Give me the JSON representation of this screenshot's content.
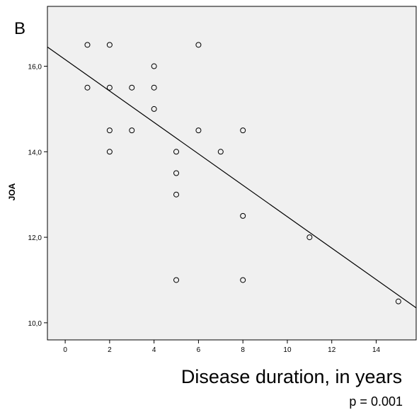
{
  "chart_data": {
    "type": "scatter",
    "panel_label": "B",
    "title": "",
    "xlabel": "Disease duration, in years",
    "ylabel": "JOA",
    "annotation": "p = 0.001",
    "xlim": [
      -0.8,
      15.8
    ],
    "ylim": [
      9.6,
      17.4
    ],
    "x_ticks": [
      {
        "value": 0,
        "label": "0"
      },
      {
        "value": 2,
        "label": "2"
      },
      {
        "value": 4,
        "label": "4"
      },
      {
        "value": 6,
        "label": "6"
      },
      {
        "value": 8,
        "label": "8"
      },
      {
        "value": 10,
        "label": "10"
      },
      {
        "value": 12,
        "label": "12"
      },
      {
        "value": 14,
        "label": "14"
      }
    ],
    "y_ticks": [
      {
        "value": 10,
        "label": "10,0"
      },
      {
        "value": 12,
        "label": "12,0"
      },
      {
        "value": 14,
        "label": "14,0"
      },
      {
        "value": 16,
        "label": "16,0"
      }
    ],
    "points": [
      {
        "x": 1,
        "y": 16.5
      },
      {
        "x": 1,
        "y": 15.5
      },
      {
        "x": 2,
        "y": 16.5
      },
      {
        "x": 2,
        "y": 15.5
      },
      {
        "x": 2,
        "y": 14.5
      },
      {
        "x": 2,
        "y": 14.0
      },
      {
        "x": 3,
        "y": 15.5
      },
      {
        "x": 3,
        "y": 14.5
      },
      {
        "x": 4,
        "y": 16.0
      },
      {
        "x": 4,
        "y": 15.5
      },
      {
        "x": 4,
        "y": 15.0
      },
      {
        "x": 5,
        "y": 14.0
      },
      {
        "x": 5,
        "y": 13.5
      },
      {
        "x": 5,
        "y": 13.0
      },
      {
        "x": 5,
        "y": 11.0
      },
      {
        "x": 6,
        "y": 16.5
      },
      {
        "x": 6,
        "y": 14.5
      },
      {
        "x": 7,
        "y": 14.0
      },
      {
        "x": 8,
        "y": 14.5
      },
      {
        "x": 8,
        "y": 12.5
      },
      {
        "x": 8,
        "y": 11.0
      },
      {
        "x": 11,
        "y": 12.0
      },
      {
        "x": 15,
        "y": 10.5
      }
    ],
    "fit_line": {
      "x": [
        -0.8,
        15.8
      ],
      "y": [
        16.45,
        10.35
      ]
    },
    "grid": false,
    "colors": {
      "plot_background": "#f0f0f0",
      "marker_stroke": "#000000",
      "line": "#000000"
    }
  }
}
